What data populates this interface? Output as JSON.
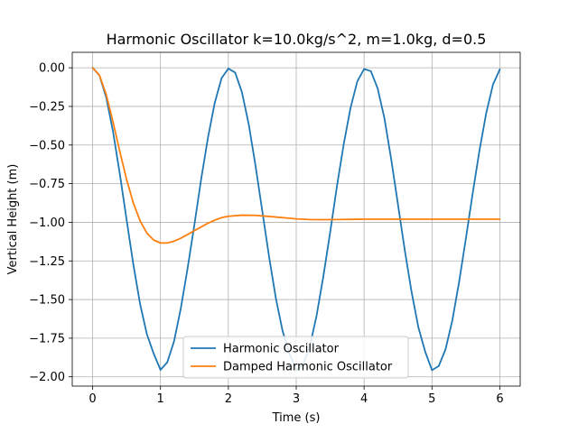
{
  "chart_data": {
    "type": "line",
    "title": "Harmonic Oscillator k=10.0kg/s^2, m=1.0kg, d=0.5",
    "xlabel": "Time (s)",
    "ylabel": "Vertical Height (m)",
    "xlim": [
      -0.3,
      6.3
    ],
    "ylim": [
      -2.06,
      0.1
    ],
    "xticks": [
      0,
      1,
      2,
      3,
      4,
      5,
      6
    ],
    "xtick_labels": [
      "0",
      "1",
      "2",
      "3",
      "4",
      "5",
      "6"
    ],
    "yticks": [
      0.0,
      -0.25,
      -0.5,
      -0.75,
      -1.0,
      -1.25,
      -1.5,
      -1.75,
      -2.0
    ],
    "ytick_labels": [
      "0.00",
      "−0.25",
      "−0.50",
      "−0.75",
      "−1.00",
      "−1.25",
      "−1.50",
      "−1.75",
      "−2.00"
    ],
    "grid": true,
    "legend_position": "lower center",
    "series": [
      {
        "name": "Harmonic Oscillator",
        "color": "#1f77b4",
        "x": [
          0.0,
          0.1,
          0.2,
          0.3,
          0.4,
          0.5,
          0.6,
          0.7,
          0.8,
          0.9,
          1.0,
          1.1,
          1.2,
          1.3,
          1.4,
          1.5,
          1.6,
          1.7,
          1.8,
          1.9,
          2.0,
          2.1,
          2.2,
          2.3,
          2.4,
          2.5,
          2.6,
          2.7,
          2.8,
          2.9,
          3.0,
          3.1,
          3.2,
          3.3,
          3.4,
          3.5,
          3.6,
          3.7,
          3.8,
          3.9,
          4.0,
          4.1,
          4.2,
          4.3,
          4.4,
          4.5,
          4.6,
          4.7,
          4.8,
          4.9,
          5.0,
          5.1,
          5.2,
          5.3,
          5.4,
          5.5,
          5.6,
          5.7,
          5.8,
          5.9,
          6.0
        ],
        "y": [
          0.0,
          -0.049,
          -0.191,
          -0.411,
          -0.684,
          -0.981,
          -1.273,
          -1.53,
          -1.725,
          -1.85,
          -1.955,
          -1.906,
          -1.77,
          -1.556,
          -1.296,
          -1.015,
          -0.719,
          -0.451,
          -0.226,
          -0.067,
          -0.005,
          -0.031,
          -0.158,
          -0.365,
          -0.633,
          -0.927,
          -1.222,
          -1.492,
          -1.705,
          -1.848,
          -1.958,
          -1.922,
          -1.803,
          -1.604,
          -1.349,
          -1.065,
          -0.766,
          -0.494,
          -0.26,
          -0.088,
          -0.008,
          -0.022,
          -0.134,
          -0.328,
          -0.594,
          -0.887,
          -1.182,
          -1.452,
          -1.68,
          -1.837,
          -1.957,
          -1.93,
          -1.822,
          -1.635,
          -1.386,
          -1.104,
          -0.813,
          -0.535,
          -0.292,
          -0.107,
          -0.01
        ]
      },
      {
        "name": "Damped Harmonic Oscillator",
        "color": "#ff7f0e",
        "x": [
          0.0,
          0.1,
          0.2,
          0.3,
          0.4,
          0.5,
          0.6,
          0.7,
          0.8,
          0.9,
          1.0,
          1.1,
          1.2,
          1.3,
          1.4,
          1.5,
          1.6,
          1.7,
          1.8,
          1.9,
          2.0,
          2.2,
          2.4,
          2.6,
          2.8,
          3.0,
          3.2,
          3.4,
          3.6,
          3.8,
          4.0,
          4.5,
          5.0,
          5.5,
          6.0
        ],
        "y": [
          0.0,
          -0.047,
          -0.173,
          -0.349,
          -0.541,
          -0.722,
          -0.875,
          -0.991,
          -1.07,
          -1.115,
          -1.134,
          -1.134,
          -1.122,
          -1.103,
          -1.079,
          -1.054,
          -1.03,
          -1.006,
          -0.986,
          -0.97,
          -0.961,
          -0.954,
          -0.955,
          -0.962,
          -0.97,
          -0.978,
          -0.982,
          -0.983,
          -0.982,
          -0.981,
          -0.98,
          -0.98,
          -0.98,
          -0.98,
          -0.98
        ]
      }
    ]
  }
}
